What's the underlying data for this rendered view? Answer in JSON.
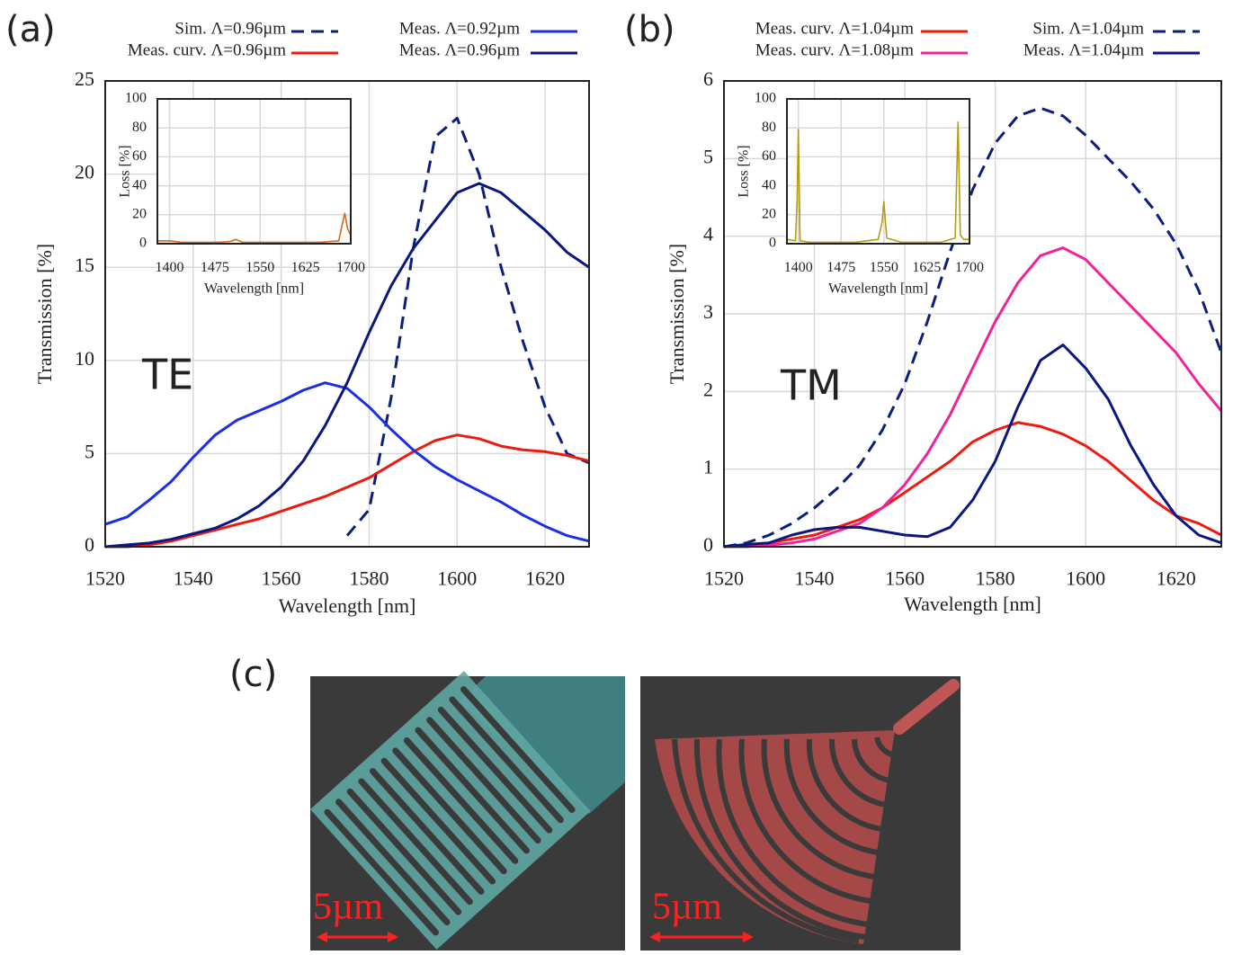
{
  "chart_data": [
    {
      "type": "line",
      "xlabel": "Wavelength [nm]",
      "ylabel": "Transmission [%]",
      "annotation": "TE",
      "xlim": [
        1520,
        1630
      ],
      "xticks": [
        1520,
        1540,
        1560,
        1580,
        1600,
        1620
      ],
      "ylim": [
        0,
        25
      ],
      "yticks": [
        0,
        5,
        10,
        15,
        20,
        25
      ],
      "grid": true,
      "legend": "top",
      "x": [
        1520,
        1525,
        1530,
        1535,
        1540,
        1545,
        1550,
        1555,
        1560,
        1565,
        1570,
        1575,
        1580,
        1585,
        1590,
        1595,
        1600,
        1605,
        1610,
        1615,
        1620,
        1625,
        1630
      ],
      "series": [
        {
          "name": "Sim. Λ=0.96µm",
          "color": "#0b1f7a",
          "dashed": true,
          "values": [
            null,
            null,
            null,
            null,
            null,
            null,
            null,
            null,
            null,
            null,
            null,
            0.6,
            2,
            8,
            16,
            22,
            23,
            20,
            15,
            11,
            7.5,
            5,
            4.5
          ]
        },
        {
          "name": "Meas. curv. Λ=0.96µm",
          "color": "#f0190f",
          "dashed": false,
          "values": [
            0,
            0,
            0.1,
            0.3,
            0.6,
            0.9,
            1.2,
            1.5,
            1.9,
            2.3,
            2.7,
            3.2,
            3.7,
            4.4,
            5.1,
            5.7,
            6,
            5.8,
            5.4,
            5.2,
            5.1,
            4.9,
            4.6
          ]
        },
        {
          "name": "Meas. Λ=0.92µm",
          "color": "#1a2ee8",
          "dashed": false,
          "values": [
            1.2,
            1.6,
            2.5,
            3.5,
            4.8,
            6,
            6.8,
            7.3,
            7.8,
            8.4,
            8.8,
            8.5,
            7.5,
            6.3,
            5.2,
            4.3,
            3.6,
            3,
            2.4,
            1.7,
            1.1,
            0.6,
            0.3
          ]
        },
        {
          "name": "Meas. Λ=0.96µm",
          "color": "#0b1780",
          "dashed": false,
          "values": [
            0,
            0.1,
            0.2,
            0.4,
            0.7,
            1,
            1.5,
            2.2,
            3.2,
            4.6,
            6.5,
            8.8,
            11.5,
            14,
            16,
            17.5,
            19,
            19.5,
            19,
            18,
            17,
            15.8,
            15
          ]
        }
      ]
    },
    {
      "type": "line",
      "xlabel": "Wavelength [nm]",
      "ylabel": "Loss [%]",
      "xlim": [
        1380,
        1700
      ],
      "xticks": [
        1400,
        1475,
        1550,
        1625,
        1700
      ],
      "ylim": [
        0,
        100
      ],
      "yticks": [
        0,
        20,
        40,
        60,
        80,
        100
      ],
      "grid": true,
      "x": [
        1380,
        1400,
        1420,
        1450,
        1480,
        1500,
        1510,
        1520,
        1550,
        1600,
        1650,
        1680,
        1690,
        1695,
        1700
      ],
      "series": [
        {
          "color": "#d2691e",
          "dashed": false,
          "values": [
            2,
            2,
            1,
            1,
            1,
            1.5,
            3,
            1,
            1,
            1,
            1,
            2,
            21,
            10,
            6
          ]
        }
      ]
    },
    {
      "type": "line",
      "xlabel": "Wavelength [nm]",
      "ylabel": "Transmission [%]",
      "annotation": "TM",
      "xlim": [
        1520,
        1630
      ],
      "xticks": [
        1520,
        1540,
        1560,
        1580,
        1600,
        1620
      ],
      "ylim": [
        0,
        6
      ],
      "yticks": [
        0,
        1,
        2,
        3,
        4,
        5,
        6
      ],
      "grid": true,
      "legend": "top",
      "x": [
        1520,
        1525,
        1530,
        1535,
        1540,
        1545,
        1550,
        1555,
        1560,
        1565,
        1570,
        1575,
        1580,
        1585,
        1590,
        1595,
        1600,
        1605,
        1610,
        1615,
        1620,
        1625,
        1630
      ],
      "series": [
        {
          "name": "Meas. curv. Λ=1.04µm",
          "color": "#f0190f",
          "dashed": false,
          "values": [
            0,
            0.02,
            0.05,
            0.1,
            0.15,
            0.25,
            0.35,
            0.5,
            0.7,
            0.9,
            1.1,
            1.35,
            1.5,
            1.6,
            1.55,
            1.45,
            1.3,
            1.1,
            0.85,
            0.6,
            0.4,
            0.3,
            0.15
          ]
        },
        {
          "name": "Meas. curv. Λ=1.08µm",
          "color": "#f0239b",
          "dashed": false,
          "values": [
            0,
            0,
            0.02,
            0.05,
            0.1,
            0.2,
            0.3,
            0.5,
            0.8,
            1.2,
            1.7,
            2.3,
            2.9,
            3.4,
            3.75,
            3.85,
            3.7,
            3.4,
            3.1,
            2.8,
            2.5,
            2.1,
            1.75
          ]
        },
        {
          "name": "Sim. Λ=1.04µm",
          "color": "#0b1f7a",
          "dashed": true,
          "values": [
            0,
            0.05,
            0.15,
            0.3,
            0.5,
            0.75,
            1.05,
            1.5,
            2.1,
            2.9,
            3.8,
            4.6,
            5.2,
            5.55,
            5.65,
            5.55,
            5.3,
            5,
            4.7,
            4.35,
            3.9,
            3.3,
            2.5
          ]
        },
        {
          "name": "Meas. Λ=1.04µm",
          "color": "#0b1780",
          "dashed": false,
          "values": [
            0,
            0.03,
            0.05,
            0.15,
            0.22,
            0.25,
            0.25,
            0.2,
            0.15,
            0.13,
            0.25,
            0.6,
            1.1,
            1.8,
            2.4,
            2.6,
            2.3,
            1.9,
            1.3,
            0.8,
            0.4,
            0.15,
            0.05
          ]
        }
      ]
    },
    {
      "type": "line",
      "xlabel": "Wavelength [nm]",
      "ylabel": "Loss [%]",
      "xlim": [
        1380,
        1700
      ],
      "xticks": [
        1400,
        1475,
        1550,
        1625,
        1700
      ],
      "ylim": [
        0,
        100
      ],
      "yticks": [
        0,
        20,
        40,
        60,
        80,
        100
      ],
      "grid": true,
      "x": [
        1380,
        1395,
        1398,
        1400,
        1403,
        1420,
        1500,
        1540,
        1547,
        1550,
        1555,
        1580,
        1650,
        1675,
        1680,
        1684,
        1690,
        1700
      ],
      "series": [
        {
          "color": "#b59a12",
          "dashed": false,
          "values": [
            3,
            2,
            30,
            79,
            2,
            1,
            1,
            3,
            15,
            29,
            4,
            1,
            1,
            4,
            84,
            6,
            3,
            3
          ]
        }
      ]
    }
  ],
  "panel_labels": [
    "(a)",
    "(b)",
    "(c)"
  ],
  "panel_c": {
    "scale_labels": [
      "5µm",
      "5µm"
    ]
  }
}
